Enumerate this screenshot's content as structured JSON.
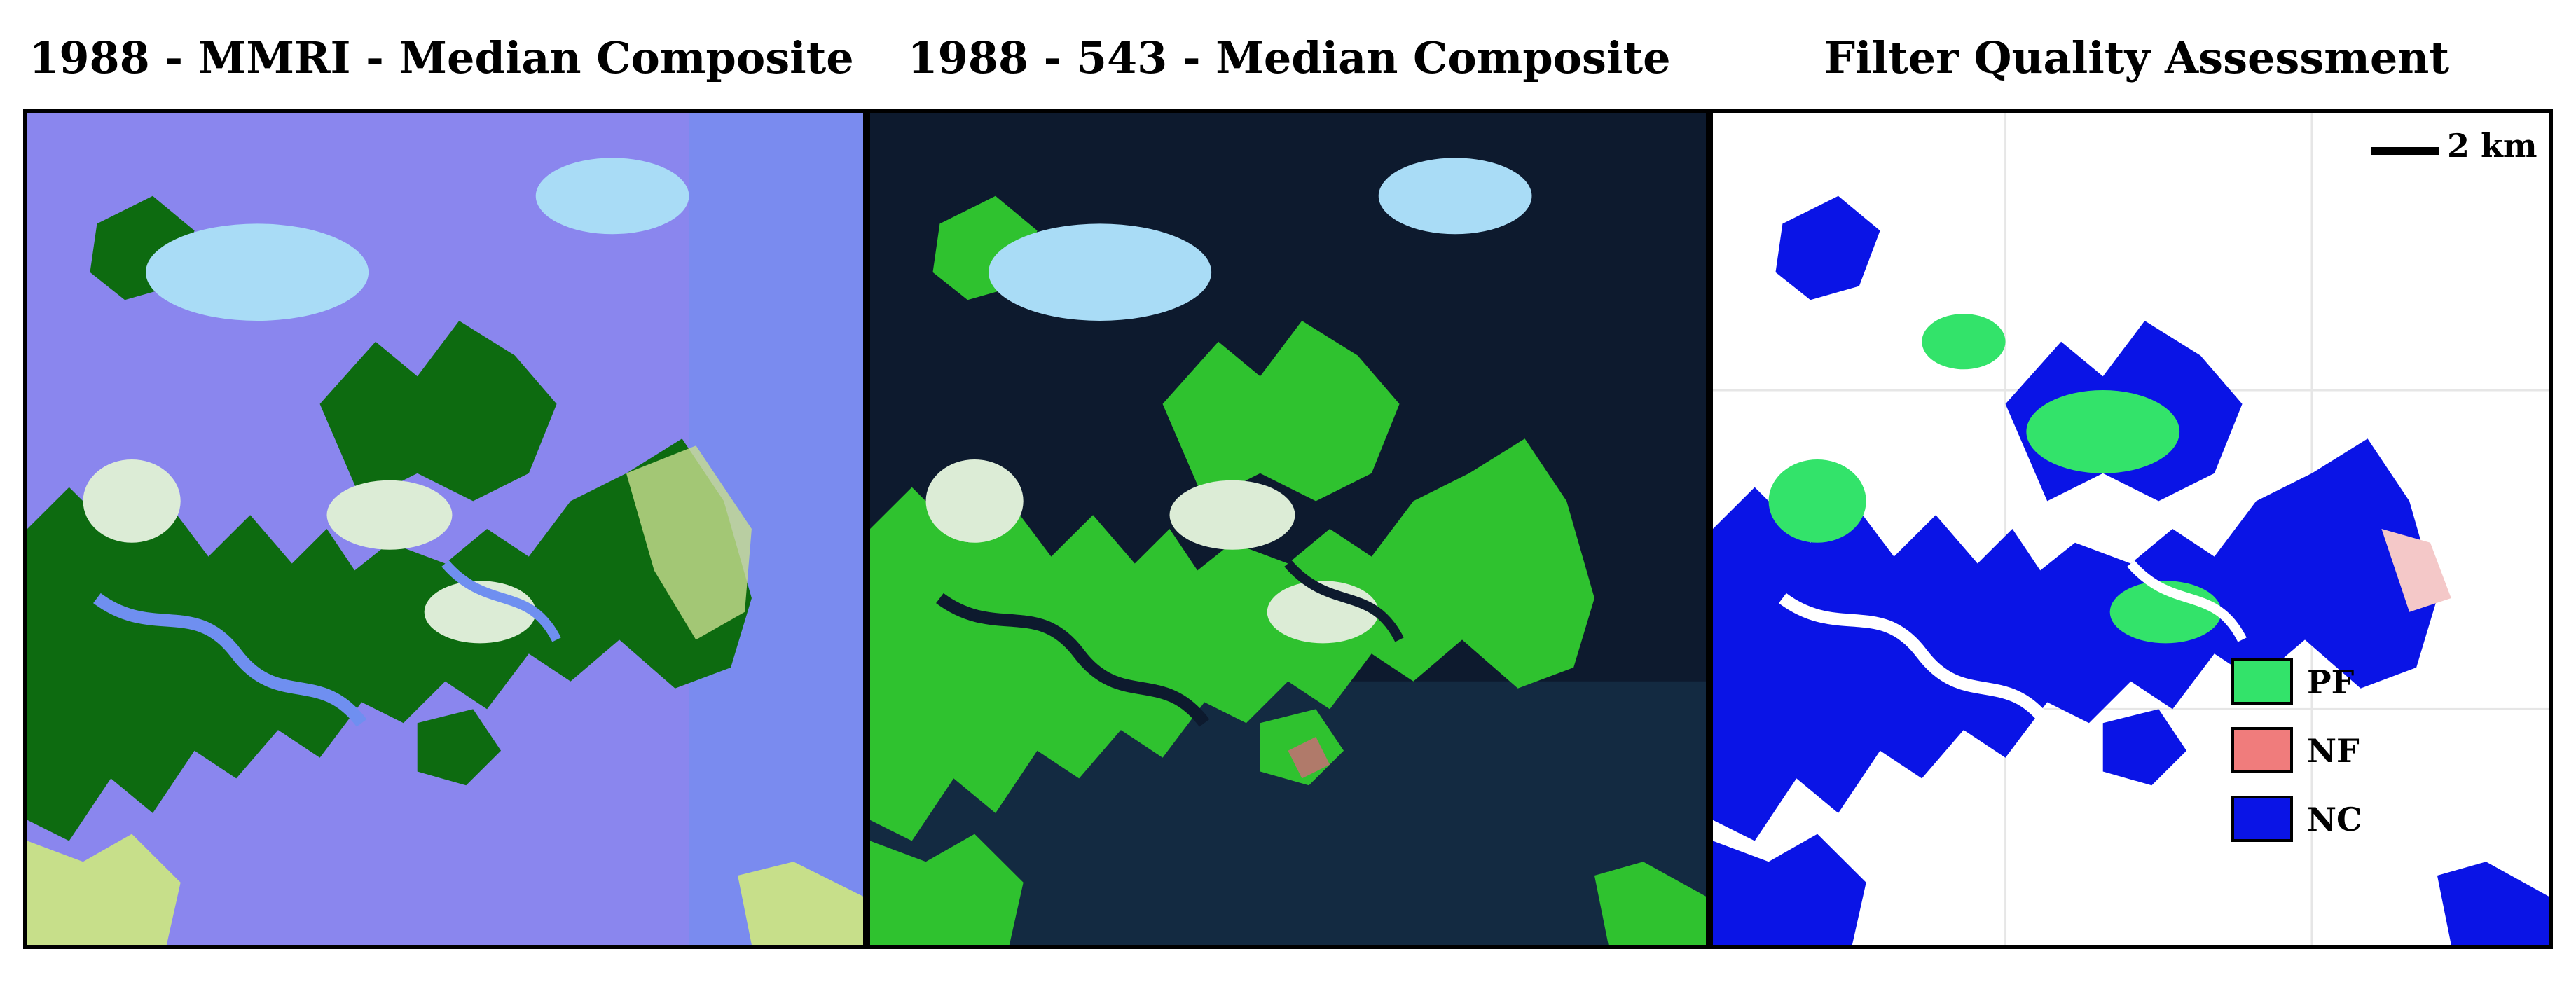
{
  "panels": [
    {
      "title": "1988 - MMRI - Median Composite"
    },
    {
      "title": "1988 - 543 - Median Composite"
    },
    {
      "title": "Filter Quality Assessment"
    }
  ],
  "scale_bar": {
    "label": "2 km"
  },
  "legend": [
    {
      "label": "PF",
      "color": "#33e36a"
    },
    {
      "label": "NF",
      "color": "#f07c7c"
    },
    {
      "label": "NC",
      "color": "#0a14e6"
    }
  ],
  "colors": {
    "mmri_water": "#8a86ee",
    "mmri_land": "#0d6b10",
    "mmri_cloud": "#a9dcf6",
    "rgb_water": "#0d1a2e",
    "rgb_land": "#2fc22f",
    "rgb_cloud": "#a9dcf6",
    "qa_bg": "#ffffff",
    "qa_nc": "#0a14e6",
    "qa_pf": "#33e36a"
  }
}
